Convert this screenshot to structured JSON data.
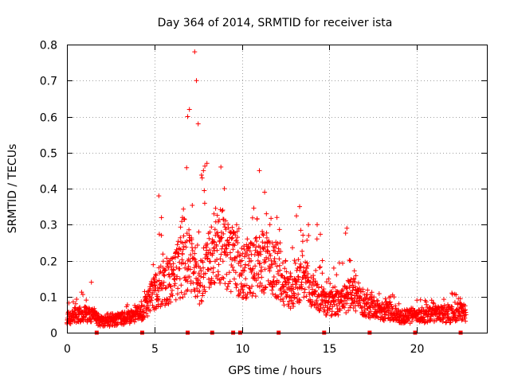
{
  "chart_data": {
    "type": "scatter",
    "title": "Day 364 of 2014, SRMTID for receiver ista",
    "xlabel": "GPS time / hours",
    "ylabel": "SRMTID / TECUs",
    "xlim": [
      0,
      24
    ],
    "ylim": [
      0,
      0.8
    ],
    "x_ticks": [
      0,
      5,
      10,
      15,
      20
    ],
    "x_tick_labels": [
      "0",
      "5",
      "10",
      "15",
      "20"
    ],
    "y_ticks": [
      0,
      0.1,
      0.2,
      0.3,
      0.4,
      0.5,
      0.6,
      0.7,
      0.8
    ],
    "y_tick_labels": [
      "0",
      "0.1",
      "0.2",
      "0.3",
      "0.4",
      "0.5",
      "0.6",
      "0.7",
      "0.8"
    ],
    "grid": true,
    "marker": "+",
    "color": "#ff0000",
    "series": [
      {
        "name": "SRMTID",
        "envelope": {
          "x": [
            0,
            0.5,
            1,
            1.5,
            2,
            2.5,
            3,
            3.5,
            4,
            4.5,
            5,
            5.25,
            5.5,
            6,
            6.5,
            6.8,
            7,
            7.1,
            7.3,
            7.5,
            7.8,
            8,
            8.2,
            8.5,
            8.8,
            9,
            9.2,
            9.5,
            10,
            10.5,
            11,
            11.2,
            11.5,
            12,
            12.2,
            12.5,
            13,
            13.5,
            14,
            14.5,
            14.8,
            15,
            15.5,
            16,
            16.2,
            16.5,
            17,
            17.5,
            18,
            18.5,
            19,
            19.5,
            20,
            20.5,
            21,
            21.5,
            22,
            22.5,
            22.8
          ],
          "typical": [
            0.04,
            0.05,
            0.05,
            0.045,
            0.03,
            0.03,
            0.04,
            0.04,
            0.05,
            0.07,
            0.11,
            0.13,
            0.13,
            0.15,
            0.17,
            0.19,
            0.2,
            0.2,
            0.17,
            0.14,
            0.14,
            0.19,
            0.2,
            0.24,
            0.25,
            0.23,
            0.21,
            0.2,
            0.17,
            0.17,
            0.19,
            0.2,
            0.2,
            0.17,
            0.16,
            0.12,
            0.12,
            0.15,
            0.11,
            0.09,
            0.08,
            0.08,
            0.08,
            0.09,
            0.13,
            0.1,
            0.08,
            0.07,
            0.06,
            0.06,
            0.045,
            0.045,
            0.045,
            0.05,
            0.05,
            0.05,
            0.05,
            0.06,
            0.05
          ],
          "peak": [
            0.08,
            0.1,
            0.14,
            0.07,
            0.05,
            0.06,
            0.07,
            0.08,
            0.08,
            0.13,
            0.24,
            0.38,
            0.28,
            0.25,
            0.3,
            0.5,
            0.62,
            0.45,
            0.78,
            0.6,
            0.48,
            0.47,
            0.32,
            0.4,
            0.47,
            0.35,
            0.3,
            0.33,
            0.3,
            0.36,
            0.46,
            0.4,
            0.38,
            0.35,
            0.33,
            0.25,
            0.35,
            0.3,
            0.31,
            0.3,
            0.18,
            0.2,
            0.2,
            0.29,
            0.25,
            0.18,
            0.13,
            0.11,
            0.12,
            0.13,
            0.1,
            0.09,
            0.1,
            0.1,
            0.09,
            0.1,
            0.13,
            0.1,
            0.08
          ]
        },
        "points": [
          [
            0.1,
            0.03
          ],
          [
            0.3,
            0.06
          ],
          [
            0.5,
            0.08
          ],
          [
            0.7,
            0.05
          ],
          [
            1.0,
            0.07
          ],
          [
            1.4,
            0.14
          ],
          [
            1.6,
            0.04
          ],
          [
            2.0,
            0.03
          ],
          [
            2.5,
            0.03
          ],
          [
            3.0,
            0.05
          ],
          [
            3.5,
            0.06
          ],
          [
            4.0,
            0.06
          ],
          [
            4.5,
            0.09
          ],
          [
            5.0,
            0.14
          ],
          [
            5.25,
            0.38
          ],
          [
            5.4,
            0.27
          ],
          [
            5.8,
            0.18
          ],
          [
            6.2,
            0.22
          ],
          [
            6.6,
            0.32
          ],
          [
            6.9,
            0.6
          ],
          [
            7.0,
            0.62
          ],
          [
            7.3,
            0.78
          ],
          [
            7.4,
            0.7
          ],
          [
            7.5,
            0.58
          ],
          [
            7.8,
            0.45
          ],
          [
            8.0,
            0.47
          ],
          [
            8.4,
            0.33
          ],
          [
            8.8,
            0.46
          ],
          [
            9.0,
            0.4
          ],
          [
            9.5,
            0.28
          ],
          [
            10.0,
            0.2
          ],
          [
            10.5,
            0.25
          ],
          [
            11.0,
            0.45
          ],
          [
            11.3,
            0.39
          ],
          [
            11.6,
            0.3
          ],
          [
            12.0,
            0.32
          ],
          [
            12.5,
            0.2
          ],
          [
            13.0,
            0.15
          ],
          [
            13.3,
            0.35
          ],
          [
            13.8,
            0.3
          ],
          [
            14.3,
            0.3
          ],
          [
            14.6,
            0.2
          ],
          [
            15.2,
            0.09
          ],
          [
            16.0,
            0.29
          ],
          [
            16.2,
            0.2
          ],
          [
            16.5,
            0.12
          ],
          [
            17.0,
            0.08
          ],
          [
            17.5,
            0.07
          ],
          [
            18.0,
            0.06
          ],
          [
            18.5,
            0.1
          ],
          [
            19.0,
            0.05
          ],
          [
            19.5,
            0.04
          ],
          [
            20.0,
            0.09
          ],
          [
            20.5,
            0.05
          ],
          [
            21.0,
            0.06
          ],
          [
            21.5,
            0.07
          ],
          [
            22.0,
            0.11
          ],
          [
            22.5,
            0.07
          ],
          [
            22.8,
            0.05
          ]
        ]
      }
    ],
    "gap_markers_x": [
      1.7,
      4.3,
      6.9,
      8.3,
      9.5,
      9.9,
      12.1,
      14.7,
      17.3,
      19.9,
      22.5
    ]
  }
}
